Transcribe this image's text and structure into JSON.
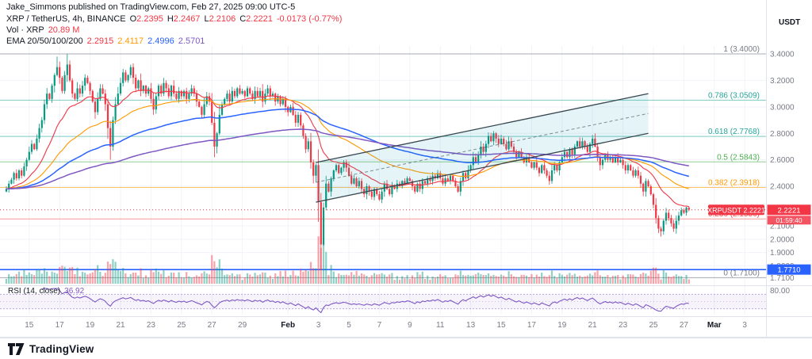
{
  "attribution": "Jake_Simmons published on TradingView.com, Feb 27, 2025 09:00 UTC-5",
  "symbol_line": {
    "title": "XRP / TetherUS, 4h, BINANCE",
    "ohlc": [
      {
        "k": "O",
        "v": "2.2395"
      },
      {
        "k": "H",
        "v": "2.2467"
      },
      {
        "k": "L",
        "v": "2.2106"
      },
      {
        "k": "C",
        "v": "2.2221"
      }
    ],
    "change": "-0.0173 (-0.77%)"
  },
  "volume_line": {
    "label": "Vol · XRP",
    "value": "20.89 M"
  },
  "ema_line": {
    "label": "EMA 20/50/100/200",
    "values": [
      "2.2915",
      "2.4117",
      "2.4996",
      "2.5701"
    ],
    "colors": [
      "#f23645",
      "#ff9800",
      "#2962ff",
      "#7e57c2"
    ]
  },
  "price_axis": {
    "unit": "USDT",
    "labels": [
      {
        "text": "3.4000",
        "price": 3.4
      },
      {
        "text": "3.2000",
        "price": 3.2
      },
      {
        "text": "3.0000",
        "price": 3.0
      },
      {
        "text": "2.8000",
        "price": 2.8
      },
      {
        "text": "2.6000",
        "price": 2.6
      },
      {
        "text": "2.4000",
        "price": 2.4
      },
      {
        "text": "2.1000",
        "price": 2.1
      },
      {
        "text": "2.0000",
        "price": 2.0
      },
      {
        "text": "1.9000",
        "price": 1.9
      },
      {
        "text": "1.8000",
        "price": 1.8
      },
      {
        "text": "1.7100",
        "price": 1.71
      }
    ],
    "last_price_badge": {
      "text": "2.2221",
      "countdown": "01:59:40",
      "color": "#f23645"
    },
    "alert_badge": {
      "text": "1.7710",
      "price": 1.771,
      "color": "#2962ff"
    }
  },
  "price_label_tag": {
    "text": "XRPUSDT 2.2221"
  },
  "time_axis": {
    "labels": [
      {
        "t": "15",
        "i": 9,
        "m": false
      },
      {
        "t": "17",
        "i": 21,
        "m": false
      },
      {
        "t": "19",
        "i": 33,
        "m": false
      },
      {
        "t": "21",
        "i": 45,
        "m": false
      },
      {
        "t": "23",
        "i": 57,
        "m": false
      },
      {
        "t": "25",
        "i": 69,
        "m": false
      },
      {
        "t": "27",
        "i": 81,
        "m": false
      },
      {
        "t": "29",
        "i": 93,
        "m": false
      },
      {
        "t": "Feb",
        "i": 111,
        "m": true
      },
      {
        "t": "3",
        "i": 123,
        "m": false
      },
      {
        "t": "5",
        "i": 135,
        "m": false
      },
      {
        "t": "7",
        "i": 147,
        "m": false
      },
      {
        "t": "9",
        "i": 159,
        "m": false
      },
      {
        "t": "11",
        "i": 171,
        "m": false
      },
      {
        "t": "13",
        "i": 183,
        "m": false
      },
      {
        "t": "15",
        "i": 195,
        "m": false
      },
      {
        "t": "17",
        "i": 207,
        "m": false
      },
      {
        "t": "19",
        "i": 219,
        "m": false
      },
      {
        "t": "21",
        "i": 231,
        "m": false
      },
      {
        "t": "23",
        "i": 243,
        "m": false
      },
      {
        "t": "25",
        "i": 255,
        "m": false
      },
      {
        "t": "27",
        "i": 267,
        "m": false
      },
      {
        "t": "Mar",
        "i": 279,
        "m": true
      },
      {
        "t": "3",
        "i": 291,
        "m": false
      }
    ]
  },
  "fib": {
    "levels": [
      {
        "label": "1 (3.4000)",
        "price": 3.4,
        "color": "#787b86"
      },
      {
        "label": "0.786 (3.0509)",
        "price": 3.0509,
        "color": "#26a69a"
      },
      {
        "label": "0.618 (2.7768)",
        "price": 2.7768,
        "color": "#26a69a"
      },
      {
        "label": "0.5 (2.5843)",
        "price": 2.5843,
        "color": "#4caf50"
      },
      {
        "label": "0.382 (2.3918)",
        "price": 2.3918,
        "color": "#ff9800"
      },
      {
        "label": "0.236 (2.1536)",
        "price": 2.1536,
        "color": "#ef5350"
      },
      {
        "label": "0 (1.7100)",
        "price": 1.71,
        "color": "#787b86"
      }
    ]
  },
  "channel": {
    "i1": 122,
    "i2": 253,
    "p1": 2.28,
    "p2": 2.8,
    "width": 0.3,
    "fill": "rgba(0,150,170,0.10)",
    "line_color": "#37474f"
  },
  "rsi_pane": {
    "label": "RSI (14, close)",
    "value": "36.92",
    "color": "#7e57c2",
    "upper": 70,
    "lower": 30,
    "axis_label": "80.00"
  },
  "footer": {
    "brand": "TradingView"
  },
  "colors": {
    "up": "#089981",
    "down": "#f23645",
    "axis_text": "#787b86",
    "grid": "#f0f3fa"
  },
  "chart_data": {
    "type": "candlestick",
    "title": "XRP / TetherUS 4h — BINANCE",
    "symbol": "XRPUSDT",
    "exchange": "BINANCE",
    "timeframe": "4h",
    "quote_unit": "USDT",
    "ylim": [
      1.7,
      3.46
    ],
    "last": {
      "o": 2.2395,
      "h": 2.2467,
      "l": 2.2106,
      "c": 2.2221,
      "change": -0.0173,
      "change_pct": -0.77,
      "volume_display": "20.89 M"
    },
    "emas": {
      "periods": [
        20,
        50,
        100,
        200
      ],
      "last_values": [
        2.2915,
        2.4117,
        2.4996,
        2.5701
      ]
    },
    "rsi": {
      "period": 14,
      "last": 36.92
    },
    "closes": [
      2.38,
      2.42,
      2.45,
      2.5,
      2.46,
      2.52,
      2.48,
      2.55,
      2.6,
      2.66,
      2.72,
      2.68,
      2.76,
      2.84,
      2.9,
      3.02,
      3.1,
      3.06,
      3.16,
      3.24,
      3.3,
      3.22,
      3.12,
      3.24,
      3.32,
      3.2,
      3.1,
      3.06,
      3.14,
      3.1,
      3.16,
      3.22,
      3.18,
      3.12,
      3.04,
      2.96,
      3.06,
      3.14,
      3.1,
      3.02,
      2.84,
      2.7,
      2.9,
      3.02,
      3.1,
      3.18,
      3.26,
      3.2,
      3.24,
      3.3,
      3.22,
      3.14,
      3.2,
      3.12,
      3.16,
      3.1,
      3.14,
      3.06,
      2.98,
      3.08,
      3.16,
      3.1,
      3.18,
      3.14,
      3.08,
      3.16,
      3.1,
      3.06,
      3.12,
      3.08,
      3.12,
      3.06,
      3.1,
      3.14,
      3.1,
      3.04,
      3.0,
      2.94,
      3.02,
      3.08,
      3.04,
      2.88,
      2.7,
      2.8,
      2.94,
      3.02,
      3.06,
      3.1,
      3.04,
      3.12,
      3.08,
      3.14,
      3.1,
      3.12,
      3.08,
      3.14,
      3.1,
      3.06,
      3.12,
      3.08,
      3.12,
      3.04,
      3.1,
      3.14,
      3.08,
      3.1,
      3.04,
      3.08,
      3.02,
      3.06,
      3.0,
      2.96,
      3.0,
      2.94,
      2.88,
      2.94,
      2.86,
      2.78,
      2.68,
      2.74,
      2.58,
      2.48,
      2.56,
      2.28,
      1.96,
      2.24,
      2.42,
      2.36,
      2.46,
      2.52,
      2.56,
      2.5,
      2.54,
      2.58,
      2.54,
      2.48,
      2.42,
      2.46,
      2.4,
      2.44,
      2.38,
      2.34,
      2.4,
      2.36,
      2.32,
      2.38,
      2.34,
      2.3,
      2.36,
      2.42,
      2.38,
      2.34,
      2.4,
      2.38,
      2.42,
      2.4,
      2.44,
      2.42,
      2.46,
      2.44,
      2.4,
      2.36,
      2.42,
      2.38,
      2.44,
      2.42,
      2.46,
      2.44,
      2.48,
      2.46,
      2.5,
      2.46,
      2.42,
      2.46,
      2.44,
      2.48,
      2.44,
      2.4,
      2.36,
      2.44,
      2.5,
      2.46,
      2.52,
      2.56,
      2.62,
      2.58,
      2.64,
      2.7,
      2.66,
      2.72,
      2.78,
      2.74,
      2.8,
      2.76,
      2.72,
      2.76,
      2.72,
      2.68,
      2.74,
      2.7,
      2.66,
      2.62,
      2.66,
      2.62,
      2.58,
      2.62,
      2.58,
      2.54,
      2.58,
      2.54,
      2.5,
      2.56,
      2.52,
      2.48,
      2.44,
      2.52,
      2.56,
      2.52,
      2.58,
      2.62,
      2.66,
      2.62,
      2.68,
      2.64,
      2.7,
      2.74,
      2.7,
      2.74,
      2.7,
      2.66,
      2.72,
      2.76,
      2.7,
      2.62,
      2.56,
      2.6,
      2.64,
      2.6,
      2.62,
      2.58,
      2.62,
      2.58,
      2.6,
      2.56,
      2.52,
      2.56,
      2.52,
      2.48,
      2.52,
      2.48,
      2.42,
      2.36,
      2.44,
      2.4,
      2.34,
      2.26,
      2.16,
      2.08,
      2.06,
      2.14,
      2.2,
      2.16,
      2.12,
      2.08,
      2.14,
      2.18,
      2.22,
      2.2,
      2.2395,
      2.2221
    ],
    "wick_overrides": {
      "20": {
        "h": 3.38
      },
      "24": {
        "h": 3.4
      },
      "41": {
        "l": 2.6
      },
      "82": {
        "l": 2.62
      },
      "124": {
        "l": 1.77
      },
      "125": {
        "l": 1.95
      },
      "258": {
        "l": 2.02
      },
      "269": {
        "h": 2.2467,
        "l": 2.2106
      }
    }
  }
}
